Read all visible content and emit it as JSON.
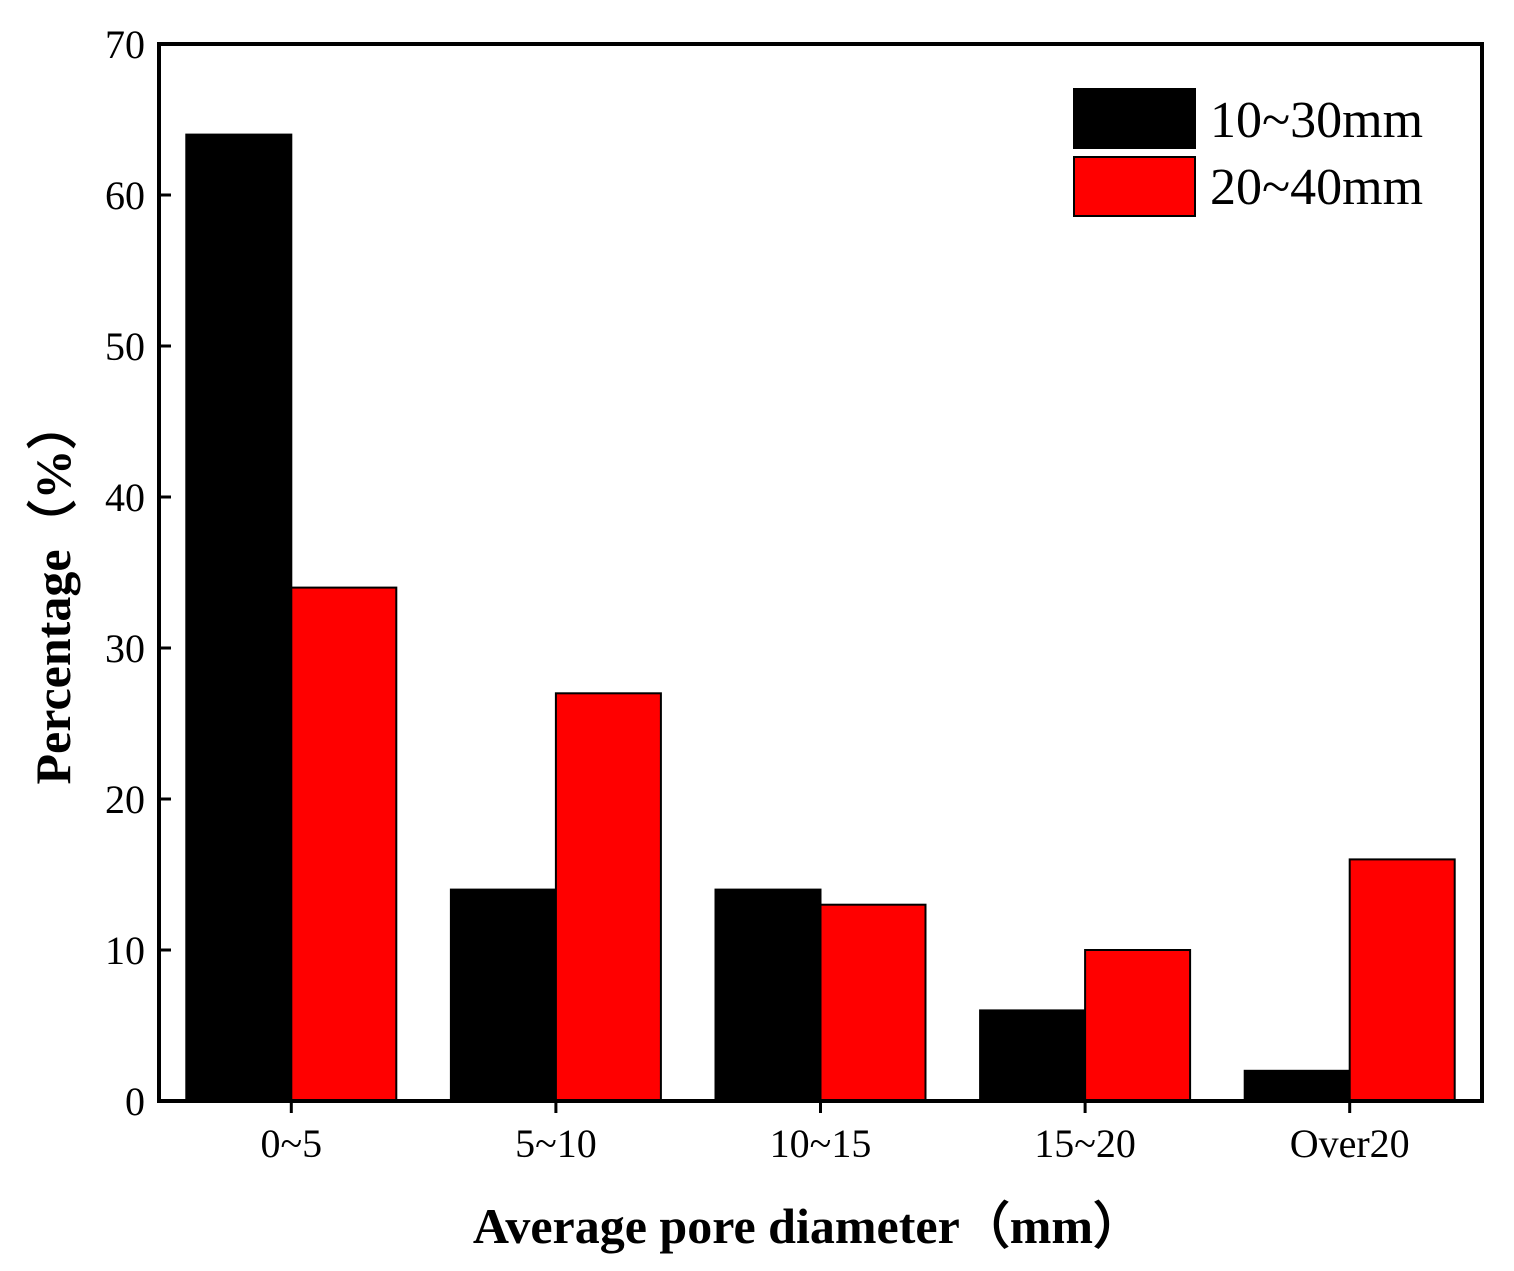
{
  "chart_data": {
    "type": "bar",
    "title": "",
    "xlabel": "Average pore diameter（mm）",
    "ylabel": "Percentage（%）",
    "categories": [
      "0~5",
      "5~10",
      "10~15",
      "15~20",
      "Over20"
    ],
    "series": [
      {
        "name": "10~30mm",
        "color": "#000000",
        "values": [
          64,
          14,
          14,
          6,
          2
        ]
      },
      {
        "name": "20~40mm",
        "color": "#ff0000",
        "values": [
          34,
          27,
          13,
          10,
          16
        ]
      }
    ],
    "ylim": [
      0,
      70
    ],
    "yticks": [
      0,
      10,
      20,
      30,
      40,
      50,
      60,
      70
    ],
    "grid": false,
    "legend_position": "top-right"
  }
}
